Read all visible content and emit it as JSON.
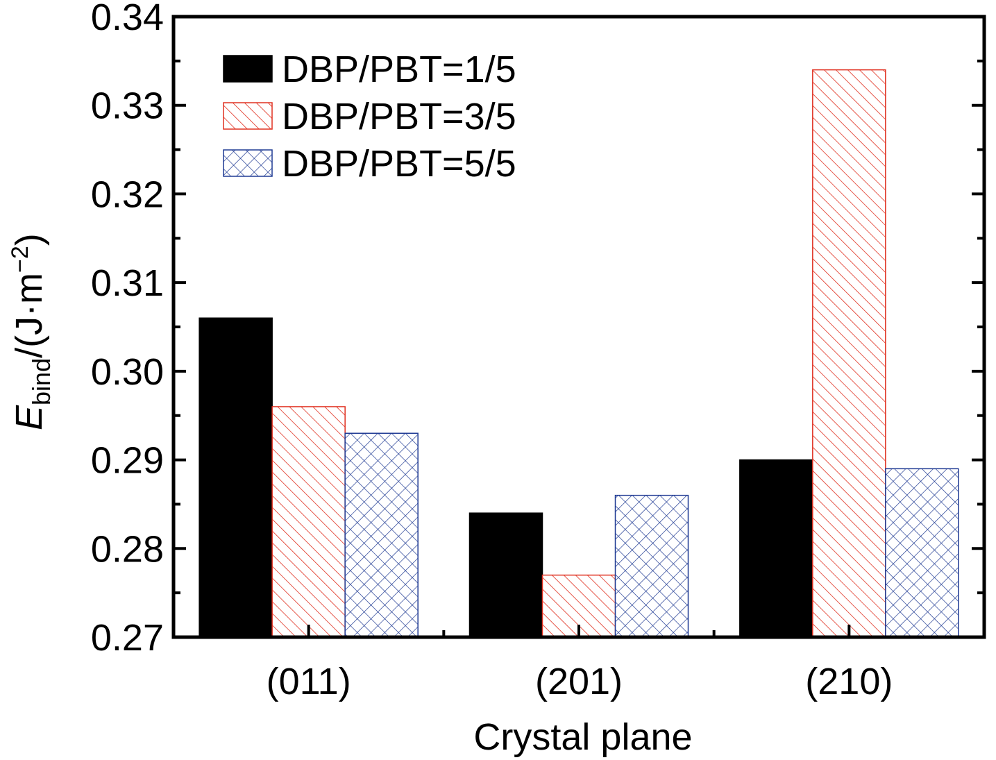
{
  "chart_data": {
    "type": "bar",
    "categories": [
      "(011)",
      "(201)",
      "(210)"
    ],
    "series": [
      {
        "name": "DBP/PBT=1/5",
        "values": [
          0.306,
          0.284,
          0.29
        ],
        "fill": "solid",
        "color": "#000000"
      },
      {
        "name": "DBP/PBT=3/5",
        "values": [
          0.296,
          0.277,
          0.334
        ],
        "fill": "diagonal-hatch",
        "color": "#e03020"
      },
      {
        "name": "DBP/PBT=5/5",
        "values": [
          0.293,
          0.286,
          0.289
        ],
        "fill": "cross-hatch",
        "color": "#1f3a93"
      }
    ],
    "xlabel": "Crystal plane",
    "ylabel": {
      "symbol": "E",
      "subscript": "bind",
      "unit_prefix": "/(J·m",
      "unit_exp": "−2",
      "unit_suffix": ")"
    },
    "ylim": [
      0.27,
      0.34
    ],
    "yticks": [
      "0.27",
      "0.28",
      "0.29",
      "0.30",
      "0.31",
      "0.32",
      "0.33",
      "0.34"
    ],
    "grid": false,
    "legend_position": "top-left"
  }
}
